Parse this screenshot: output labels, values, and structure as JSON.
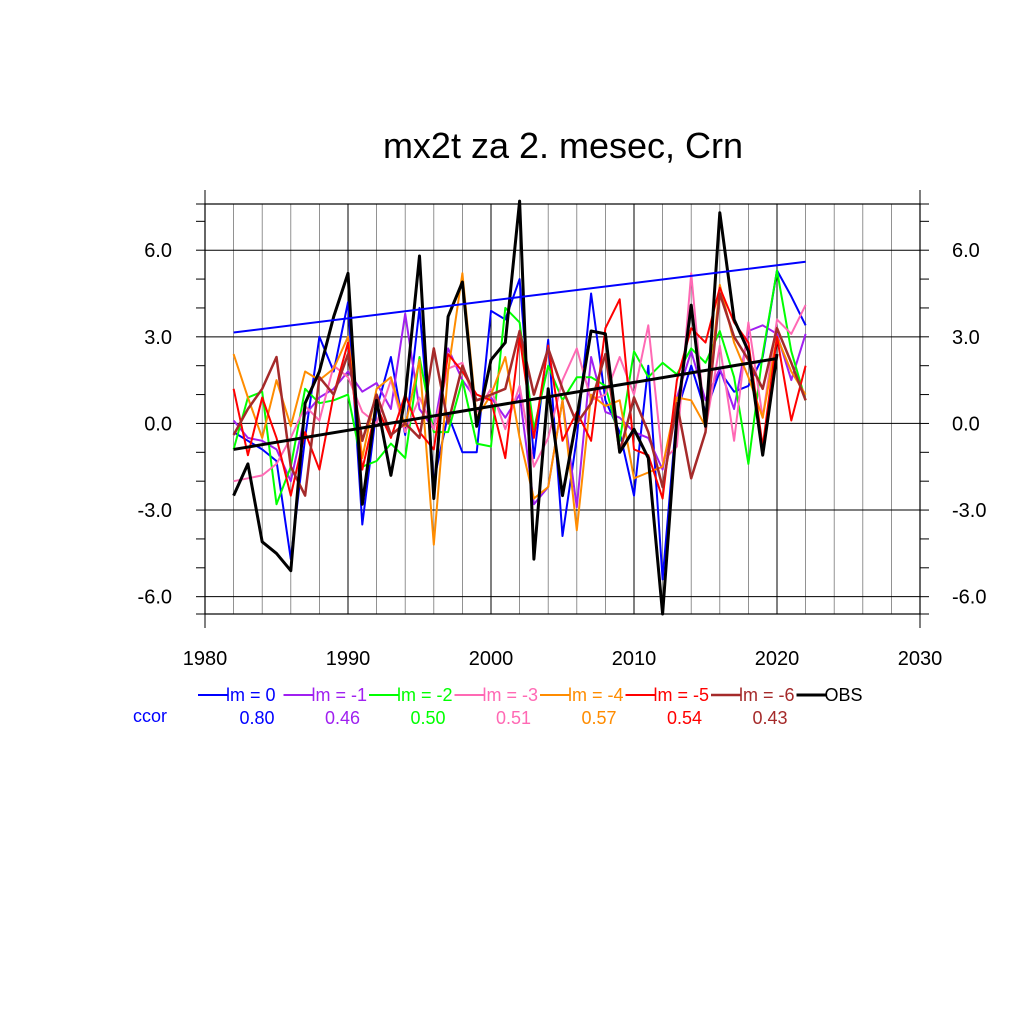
{
  "chart_data": {
    "type": "line",
    "title": "mx2t za 2. mesec, Crn",
    "xlabel": "",
    "ylabel": "",
    "xlim": [
      1980,
      2030
    ],
    "ylim": [
      -6.6,
      7.6
    ],
    "x_ticks": [
      "1980",
      "1990",
      "2000",
      "2010",
      "2020",
      "2030"
    ],
    "y_ticks": [
      "6.0",
      "3.0",
      "0.0",
      "-3.0",
      "-6.0"
    ],
    "grid": "on",
    "legend_position": "bottom",
    "ccor_label": "ccor",
    "ccor_color": "#0000ff",
    "x": [
      1982,
      1983,
      1984,
      1985,
      1986,
      1987,
      1988,
      1989,
      1990,
      1991,
      1992,
      1993,
      1994,
      1995,
      1996,
      1997,
      1998,
      1999,
      2000,
      2001,
      2002,
      2003,
      2004,
      2005,
      2006,
      2007,
      2008,
      2009,
      2010,
      2011,
      2012,
      2013,
      2014,
      2015,
      2016,
      2017,
      2018,
      2019,
      2020,
      2021,
      2022
    ],
    "series": [
      {
        "name": "lm = 0",
        "ccor": "0.80",
        "color": "#0000ff",
        "width": 2,
        "values": [
          -0.3,
          -0.6,
          -0.9,
          -1.3,
          -4.7,
          -0.5,
          3.0,
          1.8,
          4.2,
          -3.5,
          0.5,
          2.3,
          -0.4,
          4.0,
          -2.0,
          0.3,
          -1.0,
          -1.0,
          3.9,
          3.6,
          5.0,
          -1.2,
          2.9,
          -3.9,
          -0.5,
          4.5,
          0.8,
          -0.3,
          -2.5,
          2.0,
          -5.4,
          0.4,
          2.0,
          0.4,
          1.8,
          1.1,
          1.3,
          2.3,
          5.3,
          4.4,
          3.4
        ]
      },
      {
        "name": "lm = -1",
        "ccor": "0.46",
        "color": "#a020f0",
        "width": 2,
        "values": [
          0.1,
          -0.5,
          -0.6,
          -0.9,
          -2.0,
          0.3,
          0.9,
          1.2,
          1.8,
          1.1,
          1.4,
          0.5,
          3.8,
          0.5,
          -0.2,
          2.6,
          1.5,
          0.8,
          0.9,
          0.2,
          1.0,
          -2.8,
          -2.2,
          0.8,
          -2.9,
          2.3,
          0.4,
          0.2,
          -0.3,
          -0.5,
          -1.6,
          0.9,
          2.5,
          0.8,
          1.9,
          0.5,
          3.2,
          3.4,
          3.1,
          1.5,
          3.1
        ]
      },
      {
        "name": "lm = -2",
        "ccor": "0.50",
        "color": "#00ff00",
        "width": 2,
        "values": [
          -0.9,
          0.9,
          1.1,
          -2.8,
          -1.5,
          1.2,
          0.7,
          0.8,
          1.0,
          -1.5,
          -1.3,
          -0.7,
          -1.2,
          2.3,
          -0.3,
          -0.3,
          1.5,
          -0.7,
          -0.8,
          4.0,
          3.5,
          -0.2,
          2.0,
          0.8,
          1.6,
          1.6,
          1.3,
          -0.6,
          2.5,
          1.6,
          2.1,
          1.7,
          2.6,
          2.1,
          3.2,
          1.6,
          -1.4,
          2.4,
          5.3,
          2.5,
          0.8
        ]
      },
      {
        "name": "lm = -3",
        "ccor": "0.51",
        "color": "#ff69b4",
        "width": 2,
        "values": [
          -2.0,
          -1.9,
          -1.8,
          -1.4,
          -0.5,
          0.6,
          0.1,
          2.0,
          1.6,
          0.4,
          0.0,
          1.5,
          -0.3,
          0.9,
          -0.2,
          1.9,
          2.1,
          0.4,
          1.2,
          -0.2,
          1.3,
          -1.5,
          -0.5,
          1.5,
          2.6,
          0.8,
          1.0,
          2.3,
          1.0,
          3.4,
          -1.3,
          -0.8,
          5.2,
          -0.2,
          2.7,
          -0.6,
          3.5,
          0.2,
          3.6,
          3.1,
          4.1
        ]
      },
      {
        "name": "lm = -4",
        "ccor": "0.57",
        "color": "#ff8c00",
        "width": 2,
        "values": [
          2.4,
          0.9,
          -0.5,
          1.5,
          -0.1,
          1.8,
          1.5,
          1.9,
          3.0,
          -1.2,
          1.2,
          1.6,
          -0.1,
          2.2,
          -4.2,
          1.8,
          5.2,
          0.2,
          1.0,
          2.3,
          -0.5,
          -2.6,
          -2.2,
          0.8,
          -3.7,
          1.0,
          0.6,
          0.8,
          -1.9,
          -1.7,
          -1.5,
          0.9,
          0.8,
          -0.1,
          4.8,
          2.8,
          1.6,
          0.2,
          3.0,
          1.8,
          1.0
        ]
      },
      {
        "name": "lm = -5",
        "ccor": "0.54",
        "color": "#ff0000",
        "width": 2,
        "values": [
          1.2,
          -1.1,
          0.9,
          -0.5,
          -2.5,
          -0.3,
          -1.6,
          1.0,
          2.8,
          -1.6,
          0.6,
          -0.5,
          1.0,
          -0.3,
          -0.9,
          2.4,
          1.8,
          1.0,
          0.8,
          -1.2,
          3.0,
          -0.5,
          2.7,
          -0.6,
          0.4,
          -0.6,
          3.3,
          4.3,
          -0.9,
          -1.1,
          -2.6,
          1.5,
          3.3,
          2.8,
          4.7,
          3.5,
          2.8,
          -0.8,
          3.0,
          0.1,
          2.0
        ]
      },
      {
        "name": "lm = -6",
        "ccor": "0.43",
        "color": "#a52a2a",
        "width": 2.5,
        "values": [
          -0.4,
          0.5,
          1.2,
          2.3,
          -1.5,
          -2.5,
          1.6,
          1.0,
          2.4,
          -0.6,
          1.0,
          -0.4,
          0.0,
          -0.5,
          2.6,
          0.0,
          2.0,
          0.8,
          1.0,
          1.2,
          3.2,
          1.0,
          2.6,
          1.2,
          0.0,
          0.7,
          2.4,
          -1.0,
          0.9,
          -0.3,
          -2.2,
          0.7,
          -1.9,
          -0.3,
          4.5,
          3.0,
          2.2,
          1.2,
          3.3,
          2.1,
          0.8
        ]
      },
      {
        "name": "OBS",
        "ccor": "",
        "color": "#000000",
        "width": 3,
        "values": [
          -2.5,
          -1.4,
          -4.1,
          -4.5,
          -5.1,
          0.7,
          1.8,
          3.7,
          5.2,
          -2.8,
          0.8,
          -1.8,
          0.9,
          5.8,
          -2.6,
          3.7,
          4.9,
          -0.1,
          2.2,
          2.8,
          7.7,
          -4.7,
          1.2,
          -2.5,
          0.2,
          3.2,
          3.1,
          -1.0,
          -0.2,
          -1.2,
          -6.6,
          0.2,
          4.1,
          -0.1,
          7.3,
          3.6,
          2.5,
          -1.1,
          2.4,
          null,
          null
        ]
      }
    ],
    "trend_lines": [
      {
        "series": "lm = 0",
        "color": "#0000ff",
        "width": 2,
        "x": [
          1982,
          2022
        ],
        "y": [
          3.15,
          5.6
        ]
      },
      {
        "series": "OBS",
        "color": "#000000",
        "width": 3,
        "x": [
          1982,
          2020
        ],
        "y": [
          -0.9,
          2.25
        ]
      }
    ]
  }
}
